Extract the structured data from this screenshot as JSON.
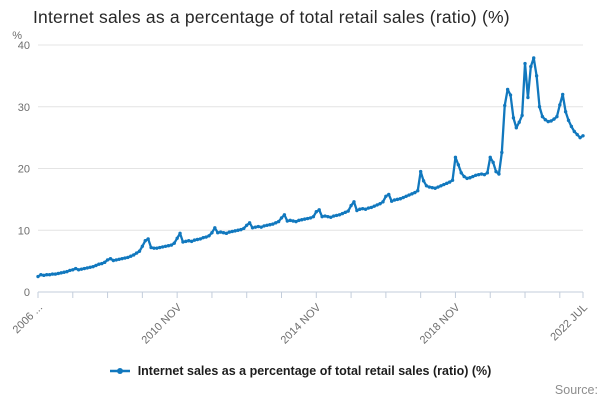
{
  "title": "Internet sales as a percentage of total retail sales (ratio) (%)",
  "legend": {
    "label": "Internet sales as a percentage of total retail sales (ratio) (%)"
  },
  "source_label": "Source:",
  "colors": {
    "line": "#1178be",
    "grid": "#e4e4e4",
    "axis": "#c3cddb",
    "tick_text": "#6e6e6e",
    "title_text": "#282828",
    "legend_text": "#1d1d1d",
    "source_text": "#8e8e8e"
  },
  "chart_data": {
    "type": "line",
    "title": "Internet sales as a percentage of total retail sales (ratio) (%)",
    "xlabel": "",
    "ylabel": "%",
    "ylim": [
      0,
      40
    ],
    "y_ticks": [
      0,
      10,
      20,
      30,
      40
    ],
    "grid": "horizontal",
    "legend_position": "bottom",
    "frequency": "monthly",
    "x_start": "2006 NOV",
    "x_end": "2022 JUL",
    "x_tick_month_indices": [
      0,
      12,
      24,
      36,
      48,
      60,
      72,
      84,
      96,
      108,
      120,
      132,
      144,
      156,
      168,
      180,
      188
    ],
    "x_tick_labels": [
      {
        "index": 0,
        "text": "2006 ..."
      },
      {
        "index": 48,
        "text": "2010 NOV"
      },
      {
        "index": 96,
        "text": "2014 NOV"
      },
      {
        "index": 144,
        "text": "2018 NOV"
      },
      {
        "index": 188,
        "text": "2022 JUL"
      }
    ],
    "series": [
      {
        "name": "Internet sales as a percentage of total retail sales (ratio) (%)",
        "values": [
          2.5,
          2.8,
          2.7,
          2.8,
          2.8,
          2.9,
          2.9,
          3.0,
          3.1,
          3.2,
          3.3,
          3.5,
          3.6,
          3.8,
          3.6,
          3.7,
          3.8,
          3.9,
          4.0,
          4.1,
          4.3,
          4.5,
          4.6,
          4.8,
          5.2,
          5.4,
          5.1,
          5.2,
          5.3,
          5.4,
          5.5,
          5.6,
          5.8,
          6.0,
          6.3,
          6.6,
          7.4,
          8.3,
          8.6,
          7.2,
          7.1,
          7.1,
          7.2,
          7.3,
          7.4,
          7.5,
          7.6,
          7.9,
          8.7,
          9.5,
          8.1,
          8.2,
          8.3,
          8.2,
          8.4,
          8.5,
          8.6,
          8.8,
          8.9,
          9.1,
          9.6,
          10.4,
          9.6,
          9.7,
          9.6,
          9.5,
          9.7,
          9.8,
          9.9,
          10.0,
          10.1,
          10.3,
          10.8,
          11.2,
          10.4,
          10.5,
          10.6,
          10.5,
          10.7,
          10.8,
          10.9,
          11.0,
          11.2,
          11.4,
          12.0,
          12.5,
          11.5,
          11.6,
          11.5,
          11.4,
          11.6,
          11.7,
          11.8,
          11.9,
          12.0,
          12.2,
          13.0,
          13.3,
          12.2,
          12.3,
          12.2,
          12.1,
          12.3,
          12.4,
          12.5,
          12.7,
          12.9,
          13.1,
          14.0,
          14.6,
          13.2,
          13.4,
          13.5,
          13.4,
          13.6,
          13.7,
          13.9,
          14.1,
          14.3,
          14.6,
          15.5,
          15.8,
          14.7,
          14.9,
          15.0,
          15.1,
          15.3,
          15.5,
          15.7,
          15.9,
          16.1,
          16.4,
          19.5,
          18.0,
          17.2,
          17.0,
          16.9,
          16.8,
          17.0,
          17.2,
          17.4,
          17.6,
          17.8,
          18.1,
          21.8,
          20.6,
          19.3,
          18.7,
          18.4,
          18.5,
          18.7,
          18.9,
          19.0,
          19.1,
          19.0,
          19.3,
          21.8,
          21.0,
          19.5,
          19.1,
          22.6,
          30.2,
          32.8,
          31.9,
          28.2,
          26.6,
          27.5,
          28.6,
          37.0,
          31.5,
          36.5,
          37.9,
          35.0,
          30.0,
          28.4,
          27.9,
          27.6,
          27.7,
          28.0,
          28.4,
          30.3,
          32.0,
          29.2,
          27.8,
          26.8,
          26.0,
          25.5,
          25.0,
          25.3
        ]
      }
    ]
  }
}
